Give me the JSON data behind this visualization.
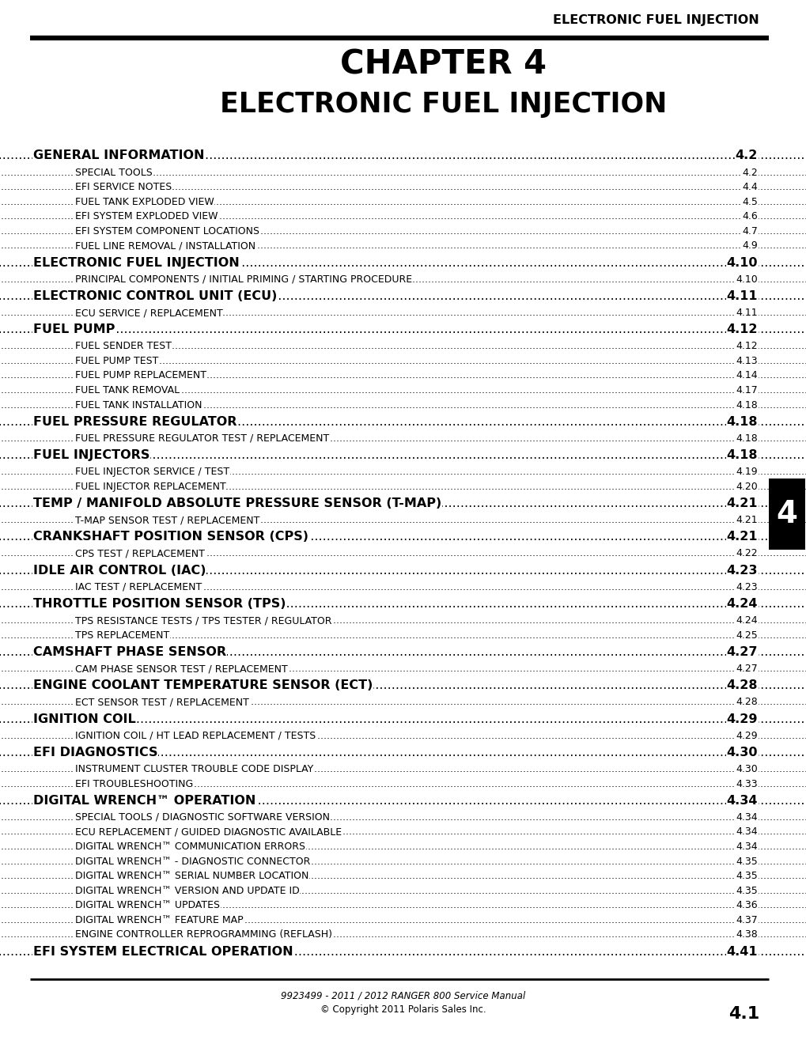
{
  "header_text": "ELECTRONIC FUEL INJECTION",
  "chapter_num": "CHAPTER 4",
  "chapter_title": "ELECTRONIC FUEL INJECTION",
  "footer_page": "4.1",
  "footer_text1": "9923499 - 2011 / 2012 RANGER 800 Service Manual",
  "footer_text2": "© Copyright 2011 Polaris Sales Inc.",
  "tab_label": "4",
  "entries": [
    {
      "level": 1,
      "text": "GENERAL INFORMATION",
      "page": "4.2"
    },
    {
      "level": 2,
      "text": "SPECIAL TOOLS",
      "page": "4.2"
    },
    {
      "level": 2,
      "text": "EFI SERVICE NOTES",
      "page": "4.4"
    },
    {
      "level": 2,
      "text": "FUEL TANK EXPLODED VIEW",
      "page": "4.5"
    },
    {
      "level": 2,
      "text": "EFI SYSTEM EXPLODED VIEW",
      "page": "4.6"
    },
    {
      "level": 2,
      "text": "EFI SYSTEM COMPONENT LOCATIONS",
      "page": "4.7"
    },
    {
      "level": 2,
      "text": "FUEL LINE REMOVAL / INSTALLATION",
      "page": "4.9"
    },
    {
      "level": 1,
      "text": "ELECTRONIC FUEL INJECTION",
      "page": "4.10"
    },
    {
      "level": 2,
      "text": "PRINCIPAL COMPONENTS / INITIAL PRIMING / STARTING PROCEDURE",
      "page": "4.10"
    },
    {
      "level": 1,
      "text": "ELECTRONIC CONTROL UNIT (ECU)",
      "page": "4.11"
    },
    {
      "level": 2,
      "text": "ECU SERVICE / REPLACEMENT",
      "page": "4.11"
    },
    {
      "level": 1,
      "text": "FUEL PUMP",
      "page": "4.12"
    },
    {
      "level": 2,
      "text": "FUEL SENDER TEST",
      "page": "4.12"
    },
    {
      "level": 2,
      "text": "FUEL PUMP TEST",
      "page": "4.13"
    },
    {
      "level": 2,
      "text": "FUEL PUMP REPLACEMENT",
      "page": "4.14"
    },
    {
      "level": 2,
      "text": "FUEL TANK REMOVAL",
      "page": "4.17"
    },
    {
      "level": 2,
      "text": "FUEL TANK INSTALLATION",
      "page": "4.18"
    },
    {
      "level": 1,
      "text": "FUEL PRESSURE REGULATOR",
      "page": "4.18"
    },
    {
      "level": 2,
      "text": "FUEL PRESSURE REGULATOR TEST / REPLACEMENT",
      "page": "4.18"
    },
    {
      "level": 1,
      "text": "FUEL INJECTORS",
      "page": "4.18"
    },
    {
      "level": 2,
      "text": "FUEL INJECTOR SERVICE / TEST",
      "page": "4.19"
    },
    {
      "level": 2,
      "text": "FUEL INJECTOR REPLACEMENT",
      "page": "4.20"
    },
    {
      "level": 1,
      "text": "TEMP / MANIFOLD ABSOLUTE PRESSURE SENSOR (T-MAP)",
      "page": "4.21"
    },
    {
      "level": 2,
      "text": "T-MAP SENSOR TEST / REPLACEMENT",
      "page": "4.21"
    },
    {
      "level": 1,
      "text": "CRANKSHAFT POSITION SENSOR (CPS)",
      "page": "4.21"
    },
    {
      "level": 2,
      "text": "CPS TEST / REPLACEMENT",
      "page": "4.22"
    },
    {
      "level": 1,
      "text": "IDLE AIR CONTROL (IAC)",
      "page": "4.23"
    },
    {
      "level": 2,
      "text": "IAC TEST / REPLACEMENT",
      "page": "4.23"
    },
    {
      "level": 1,
      "text": "THROTTLE POSITION SENSOR (TPS)",
      "page": "4.24"
    },
    {
      "level": 2,
      "text": "TPS RESISTANCE TESTS / TPS TESTER / REGULATOR",
      "page": "4.24"
    },
    {
      "level": 2,
      "text": "TPS REPLACEMENT",
      "page": "4.25"
    },
    {
      "level": 1,
      "text": "CAMSHAFT PHASE SENSOR",
      "page": "4.27"
    },
    {
      "level": 2,
      "text": "CAM PHASE SENSOR TEST / REPLACEMENT",
      "page": "4.27"
    },
    {
      "level": 1,
      "text": "ENGINE COOLANT TEMPERATURE SENSOR (ECT)",
      "page": "4.28"
    },
    {
      "level": 2,
      "text": "ECT SENSOR TEST / REPLACEMENT",
      "page": "4.28"
    },
    {
      "level": 1,
      "text": "IGNITION COIL",
      "page": "4.29"
    },
    {
      "level": 2,
      "text": "IGNITION COIL / HT LEAD REPLACEMENT / TESTS",
      "page": "4.29"
    },
    {
      "level": 1,
      "text": "EFI DIAGNOSTICS",
      "page": "4.30"
    },
    {
      "level": 2,
      "text": "INSTRUMENT CLUSTER TROUBLE CODE DISPLAY",
      "page": "4.30"
    },
    {
      "level": 2,
      "text": "EFI TROUBLESHOOTING",
      "page": "4.33"
    },
    {
      "level": 1,
      "text": "DIGITAL WRENCH™ OPERATION",
      "page": "4.34"
    },
    {
      "level": 2,
      "text": "SPECIAL TOOLS / DIAGNOSTIC SOFTWARE VERSION",
      "page": "4.34"
    },
    {
      "level": 2,
      "text": "ECU REPLACEMENT / GUIDED DIAGNOSTIC AVAILABLE",
      "page": "4.34"
    },
    {
      "level": 2,
      "text": "DIGITAL WRENCH™ COMMUNICATION ERRORS",
      "page": "4.34"
    },
    {
      "level": 2,
      "text": "DIGITAL WRENCH™ - DIAGNOSTIC CONNECTOR",
      "page": "4.35"
    },
    {
      "level": 2,
      "text": "DIGITAL WRENCH™ SERIAL NUMBER LOCATION",
      "page": "4.35"
    },
    {
      "level": 2,
      "text": "DIGITAL WRENCH™ VERSION AND UPDATE ID",
      "page": "4.35"
    },
    {
      "level": 2,
      "text": "DIGITAL WRENCH™ UPDATES",
      "page": "4.36"
    },
    {
      "level": 2,
      "text": "DIGITAL WRENCH™ FEATURE MAP",
      "page": "4.37"
    },
    {
      "level": 2,
      "text": "ENGINE CONTROLLER REPROGRAMMING (REFLASH)",
      "page": "4.38"
    },
    {
      "level": 1,
      "text": "EFI SYSTEM ELECTRICAL OPERATION",
      "page": "4.41"
    }
  ]
}
